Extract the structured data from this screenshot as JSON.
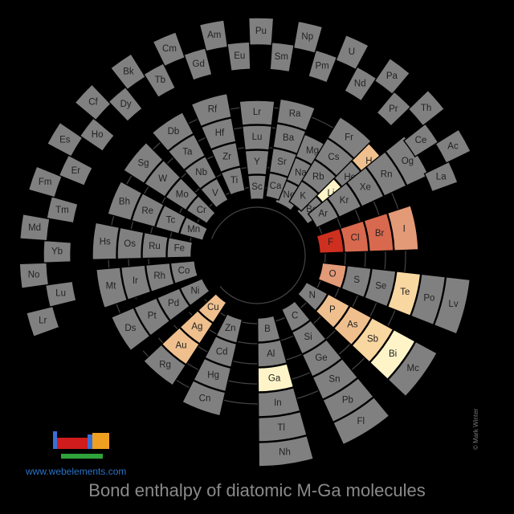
{
  "chart_data": {
    "type": "spiral periodic table heatmap",
    "title": "Bond enthalpy of diatomic M-Ga molecules",
    "colors": {
      "no_data": "#808080",
      "bond_strength_scale": [
        "#fff4c8",
        "#f9d7a1",
        "#efc08e",
        "#e39a77",
        "#d9694e",
        "#cf2f1e"
      ]
    },
    "rings": [
      [
        "Ne",
        "Na",
        "Mg"
      ],
      [
        "Be",
        "Li",
        "He",
        "H"
      ],
      [
        "F",
        "Cl",
        "Br",
        "I"
      ],
      [
        "O",
        "S",
        "Se",
        "Te",
        "Po",
        "Lv"
      ],
      [
        "N",
        "P",
        "As",
        "Sb",
        "Bi",
        "Mc"
      ],
      [
        "C",
        "Si",
        "Ge",
        "Sn",
        "Pb",
        "Fl"
      ],
      [
        "B",
        "Al",
        "Ga",
        "In",
        "Tl",
        "Nh"
      ],
      [
        "Zn",
        "Cd",
        "Hg",
        "Cn"
      ],
      [
        "Cu",
        "Ag",
        "Au",
        "Rg"
      ],
      [
        "Ni",
        "Pd",
        "Pt",
        "Ds"
      ],
      [
        "Co",
        "Rh",
        "Ir",
        "Mt"
      ],
      [
        "Fe",
        "Ru",
        "Os",
        "Hs"
      ],
      [
        "Mn",
        "Tc",
        "Re",
        "Bh"
      ],
      [
        "Cr",
        "Mo",
        "W",
        "Sg"
      ],
      [
        "V",
        "Nb",
        "Ta",
        "Db"
      ],
      [
        "Ti",
        "Zr",
        "Hf",
        "Rf"
      ],
      [
        "Sc",
        "Y",
        "Lu",
        "Lr"
      ],
      [
        "Ca",
        "Sr",
        "Ba",
        "Ra"
      ],
      [
        "K",
        "Rb",
        "Cs",
        "Fr"
      ],
      [
        "Ar",
        "Kr",
        "Xe",
        "Rn",
        "Og"
      ]
    ],
    "highlighted_elements": [
      {
        "symbol": "Li",
        "level": 0
      },
      {
        "symbol": "H",
        "level": 2
      },
      {
        "symbol": "F",
        "level": 5
      },
      {
        "symbol": "Cl",
        "level": 4
      },
      {
        "symbol": "Br",
        "level": 4
      },
      {
        "symbol": "I",
        "level": 3
      },
      {
        "symbol": "O",
        "level": 3
      },
      {
        "symbol": "P",
        "level": 2
      },
      {
        "symbol": "As",
        "level": 2
      },
      {
        "symbol": "Sb",
        "level": 1
      },
      {
        "symbol": "Bi",
        "level": 0
      },
      {
        "symbol": "Te",
        "level": 1
      },
      {
        "symbol": "Ga",
        "level": 0
      },
      {
        "symbol": "Cu",
        "level": 2
      },
      {
        "symbol": "Ag",
        "level": 2
      },
      {
        "symbol": "Au",
        "level": 2
      }
    ],
    "outer_labels": {
      "left_group": [
        "Lr",
        "Lu",
        "No",
        "Yb",
        "Md",
        "Tm",
        "Fm",
        "Er",
        "Es",
        "Ho",
        "Cf",
        "Dy",
        "Bk",
        "Tb",
        "Cm",
        "Gd"
      ],
      "top_group": [
        "Am",
        "Eu",
        "Pu",
        "Sm",
        "Np",
        "Pm",
        "U",
        "Nd",
        "Pa",
        "Pr",
        "Th",
        "Ce",
        "Ac",
        "La"
      ]
    }
  },
  "footer": {
    "site": "www.webelements.com",
    "credit": "© Mark Winter"
  }
}
